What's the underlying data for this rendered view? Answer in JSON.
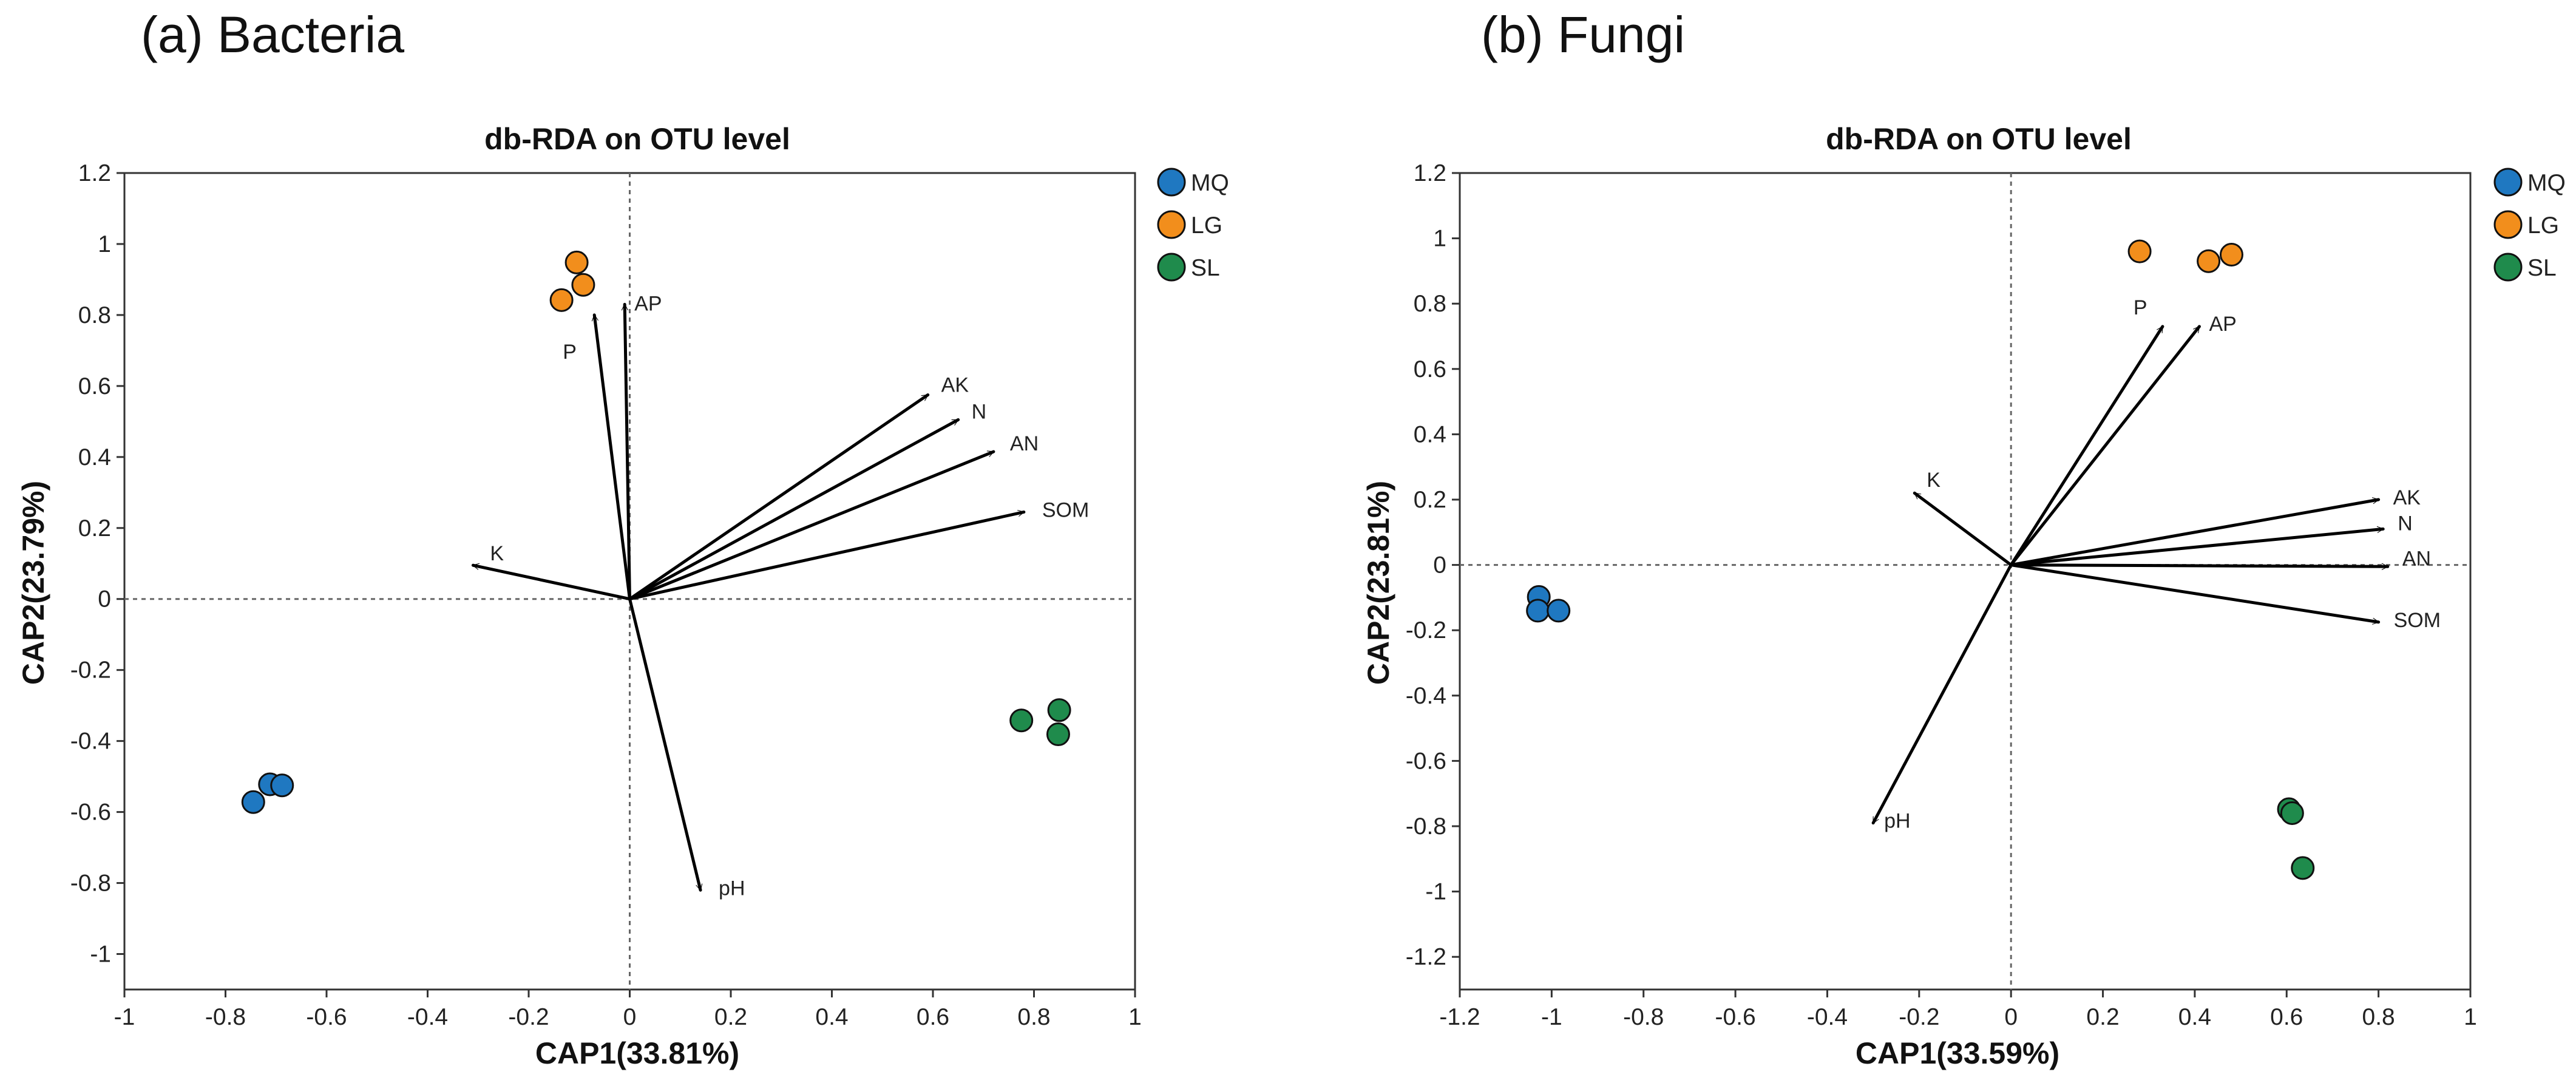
{
  "chart_data": [
    {
      "type": "scatter",
      "panel_label": "(a) Bacteria",
      "title": "db-RDA on OTU level",
      "xlabel": "CAP1(33.81%)",
      "ylabel": "CAP2(23.79%)",
      "xlim": [
        -1,
        1
      ],
      "ylim": [
        -1.1,
        1.2
      ],
      "xticks": [
        -1,
        -0.8,
        -0.6,
        -0.4,
        -0.2,
        0,
        0.2,
        0.4,
        0.6,
        0.8,
        1
      ],
      "xtick_labels": [
        "-1",
        "-0.8",
        "-0.6",
        "-0.4",
        "-0.2",
        "0",
        "0.2",
        "0.4",
        "0.6",
        "0.8",
        "1"
      ],
      "yticks": [
        -1,
        -0.8,
        -0.6,
        -0.4,
        -0.2,
        0,
        0.2,
        0.4,
        0.6,
        0.8,
        1,
        1.2
      ],
      "ytick_labels": [
        "-1",
        "-0.8",
        "-0.6",
        "-0.4",
        "-0.2",
        "0",
        "0.2",
        "0.4",
        "0.6",
        "0.8",
        "1",
        "1.2"
      ],
      "legend_position": "outside-top-right",
      "series": [
        {
          "name": "MQ",
          "color": "#1f78c1",
          "points": [
            [
              -0.745,
              -0.572
            ],
            [
              -0.712,
              -0.522
            ],
            [
              -0.688,
              -0.525
            ]
          ]
        },
        {
          "name": "LG",
          "color": "#f28e1c",
          "points": [
            [
              -0.135,
              0.842
            ],
            [
              -0.105,
              0.948
            ],
            [
              -0.092,
              0.885
            ]
          ]
        },
        {
          "name": "SL",
          "color": "#1f8b4c",
          "points": [
            [
              0.775,
              -0.342
            ],
            [
              0.85,
              -0.313
            ],
            [
              0.848,
              -0.381
            ]
          ]
        }
      ],
      "vectors": [
        {
          "name": "AP",
          "x": -0.01,
          "y": 0.83,
          "label": "AP"
        },
        {
          "name": "P",
          "x": -0.07,
          "y": 0.8,
          "label": "P"
        },
        {
          "name": "AK",
          "x": 0.59,
          "y": 0.575,
          "label": "AK"
        },
        {
          "name": "N",
          "x": 0.65,
          "y": 0.505,
          "label": "N"
        },
        {
          "name": "AN",
          "x": 0.72,
          "y": 0.415,
          "label": "AN"
        },
        {
          "name": "SOM",
          "x": 0.78,
          "y": 0.245,
          "label": "SOM"
        },
        {
          "name": "K",
          "x": -0.31,
          "y": 0.095,
          "label": "K"
        },
        {
          "name": "pH",
          "x": 0.14,
          "y": -0.82,
          "label": "pH"
        }
      ]
    },
    {
      "type": "scatter",
      "panel_label": "(b) Fungi",
      "title": "db-RDA on OTU level",
      "xlabel": "CAP1(33.59%)",
      "ylabel": "CAP2(23.81%)",
      "xlim": [
        -1.2,
        1
      ],
      "ylim": [
        -1.3,
        1.2
      ],
      "xticks": [
        -1.2,
        -1,
        -0.8,
        -0.6,
        -0.4,
        -0.2,
        0,
        0.2,
        0.4,
        0.6,
        0.8,
        1
      ],
      "xtick_labels": [
        "-1.2",
        "-1",
        "-0.8",
        "-0.6",
        "-0.4",
        "-0.2",
        "0",
        "0.2",
        "0.4",
        "0.6",
        "0.8",
        "1"
      ],
      "yticks": [
        -1.2,
        -1,
        -0.8,
        -0.6,
        -0.4,
        -0.2,
        0,
        0.2,
        0.4,
        0.6,
        0.8,
        1,
        1.2
      ],
      "ytick_labels": [
        "-1.2",
        "-1",
        "-0.8",
        "-0.6",
        "-0.4",
        "-0.2",
        "0",
        "0.2",
        "0.4",
        "0.6",
        "0.8",
        "1",
        "1.2"
      ],
      "legend_position": "outside-top-right",
      "series": [
        {
          "name": "MQ",
          "color": "#1f78c1",
          "points": [
            [
              -1.028,
              -0.098
            ],
            [
              -1.03,
              -0.14
            ],
            [
              -0.985,
              -0.14
            ]
          ]
        },
        {
          "name": "LG",
          "color": "#f28e1c",
          "points": [
            [
              0.28,
              0.96
            ],
            [
              0.43,
              0.93
            ],
            [
              0.48,
              0.95
            ]
          ]
        },
        {
          "name": "SL",
          "color": "#1f8b4c",
          "points": [
            [
              0.605,
              -0.748
            ],
            [
              0.612,
              -0.76
            ],
            [
              0.635,
              -0.928
            ]
          ]
        }
      ],
      "vectors": [
        {
          "name": "P",
          "x": 0.33,
          "y": 0.73,
          "label": "P"
        },
        {
          "name": "AP",
          "x": 0.41,
          "y": 0.73,
          "label": "AP"
        },
        {
          "name": "K",
          "x": -0.21,
          "y": 0.22,
          "label": "K"
        },
        {
          "name": "AK",
          "x": 0.8,
          "y": 0.2,
          "label": "AK"
        },
        {
          "name": "N",
          "x": 0.81,
          "y": 0.11,
          "label": "N"
        },
        {
          "name": "AN",
          "x": 0.82,
          "y": -0.005,
          "label": "AN"
        },
        {
          "name": "SOM",
          "x": 0.8,
          "y": -0.175,
          "label": "SOM"
        },
        {
          "name": "pH",
          "x": -0.3,
          "y": -0.79,
          "label": "pH"
        }
      ]
    }
  ]
}
